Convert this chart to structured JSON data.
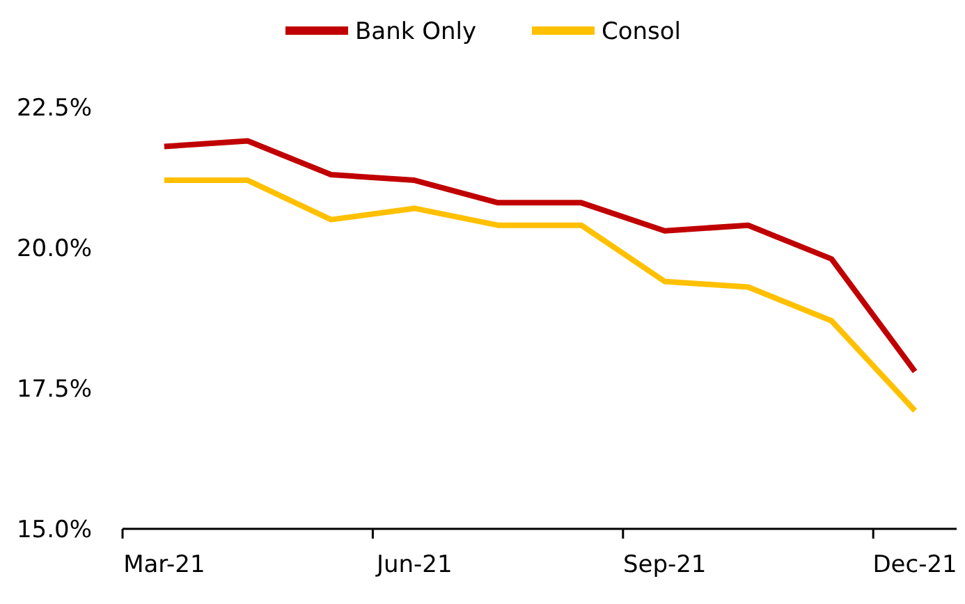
{
  "chart_data": {
    "type": "line",
    "categories": [
      "Mar-21",
      null,
      null,
      "Jun-21",
      null,
      null,
      "Sep-21",
      null,
      null,
      "Dec-21"
    ],
    "series": [
      {
        "name": "Bank Only",
        "color": "#c00000",
        "values": [
          21.8,
          21.9,
          21.3,
          21.2,
          20.8,
          20.8,
          20.3,
          20.4,
          19.8,
          17.8
        ]
      },
      {
        "name": "Consol",
        "color": "#ffc000",
        "values": [
          21.2,
          21.2,
          20.5,
          20.7,
          20.4,
          20.4,
          19.4,
          19.3,
          18.7,
          17.1
        ]
      }
    ],
    "ylim": [
      15,
      22.5
    ],
    "yticks": [
      {
        "value": 15,
        "label": "15.0%"
      },
      {
        "value": 17.5,
        "label": "17.5%"
      },
      {
        "value": 20,
        "label": "20.0%"
      },
      {
        "value": 22.5,
        "label": "22.5%"
      }
    ],
    "grid": false,
    "legend": "top",
    "marker": "none",
    "line_style": "solid"
  }
}
